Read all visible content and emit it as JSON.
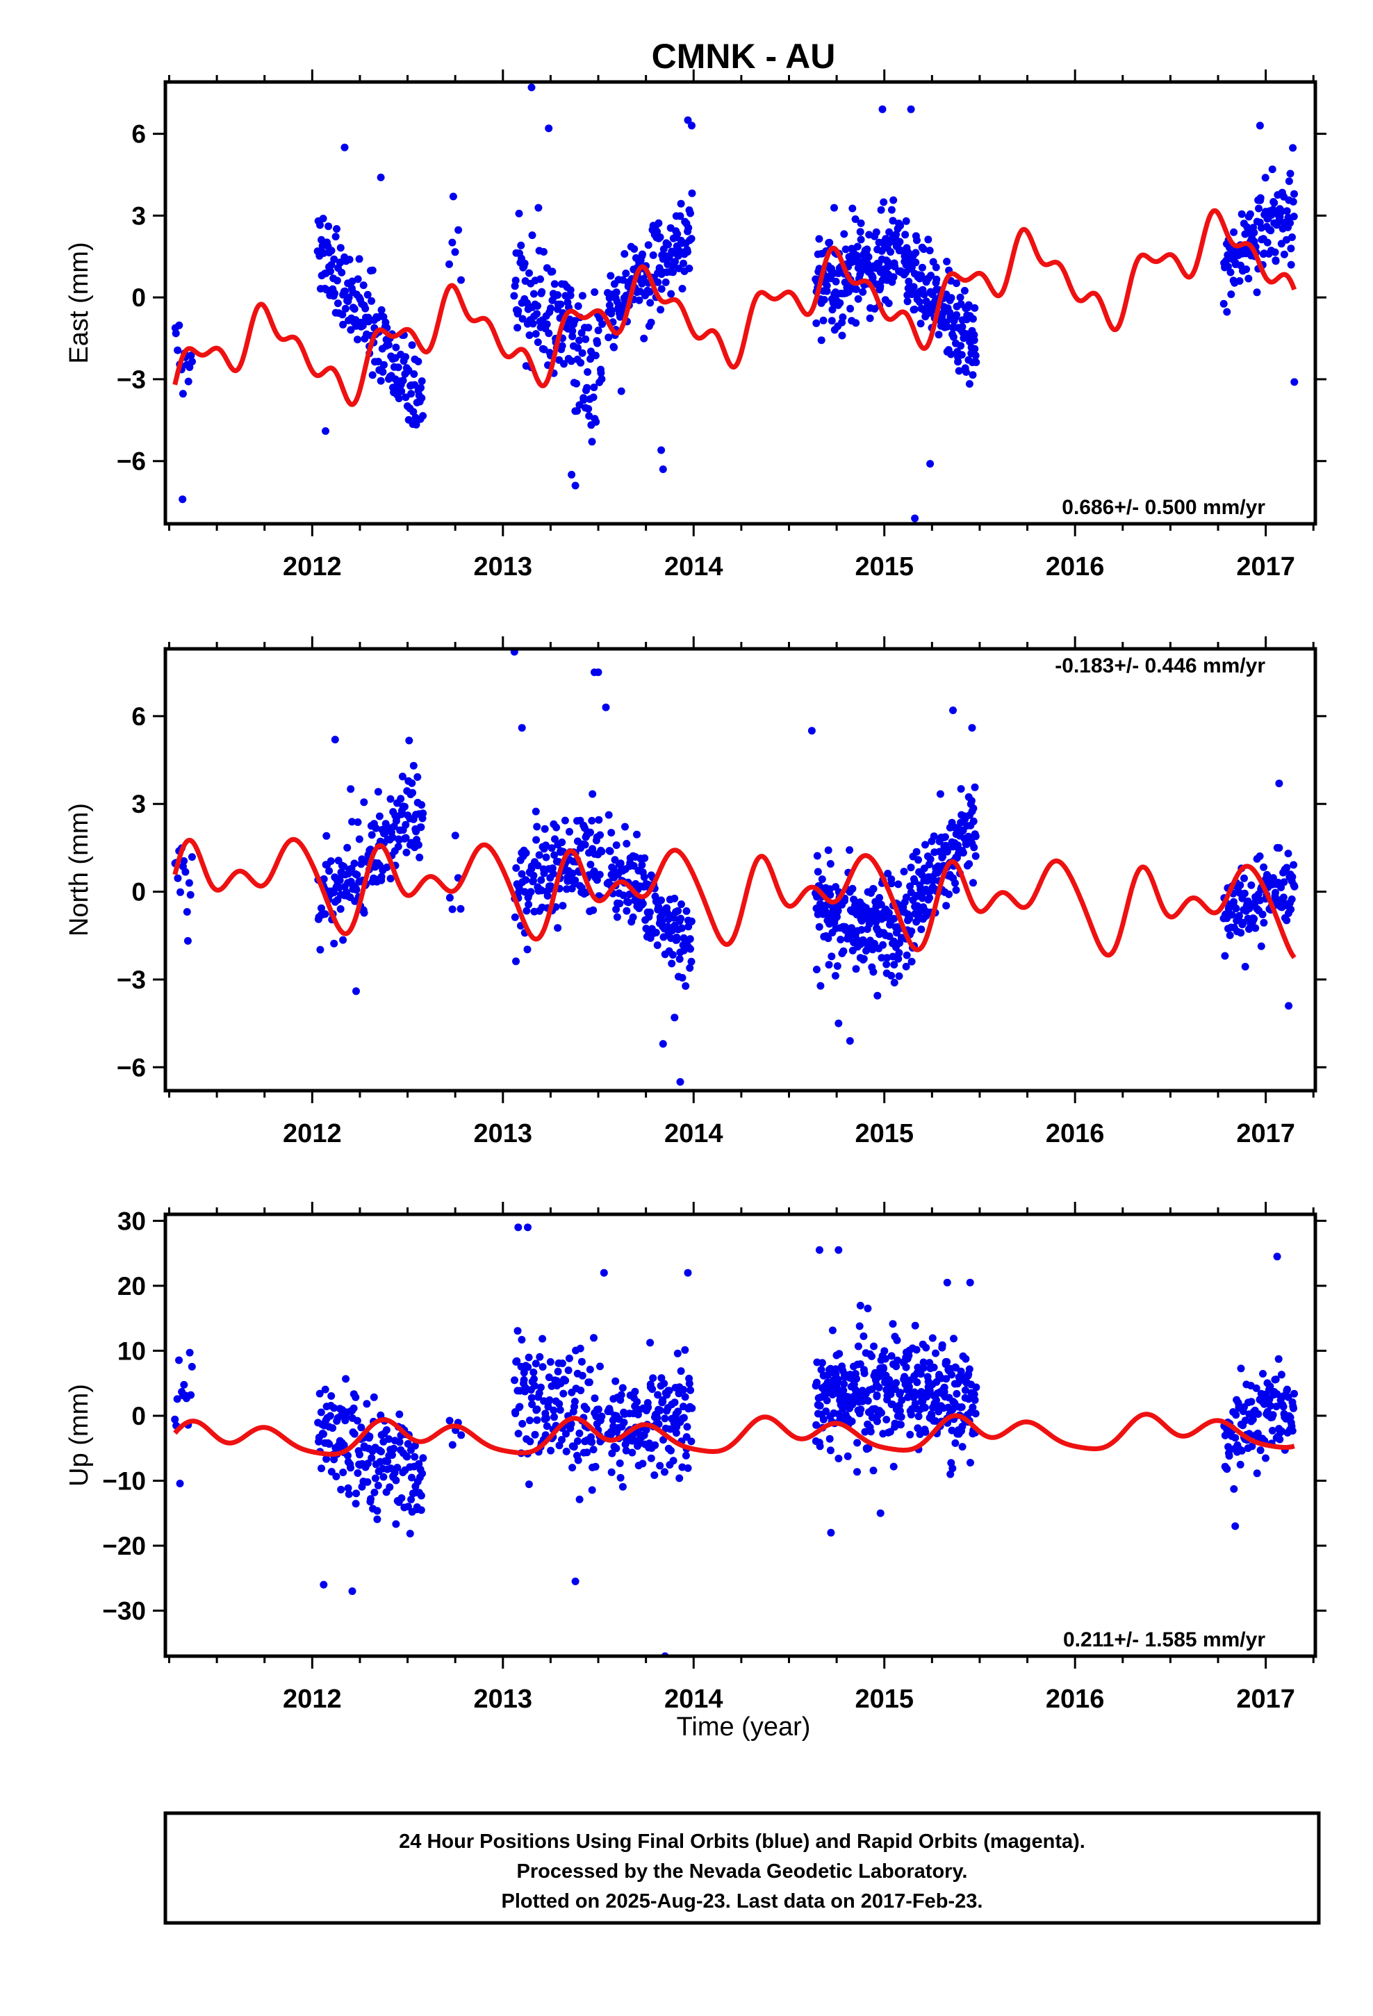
{
  "title": "CMNK - AU",
  "colors": {
    "data": "#0000ee",
    "model": "#ee1111",
    "frame": "#000000"
  },
  "xaxis": {
    "label": "Time (year)",
    "range": [
      2011.23,
      2017.26
    ],
    "major_ticks": [
      2012,
      2013,
      2014,
      2015,
      2016,
      2017
    ],
    "minor_step": 0.25
  },
  "chart_data": [
    {
      "type": "scatter",
      "key": "east",
      "ylabel": "East (mm)",
      "ylim": [
        -8.3,
        7.9
      ],
      "yticks": [
        -6,
        -3,
        0,
        3,
        6
      ],
      "rate": "0.686+/- 0.500 mm/yr",
      "rate_position": "bottom-right",
      "series": [
        {
          "role": "data",
          "segments": [
            {
              "start": 2011.28,
              "end": 2011.37,
              "n": 14,
              "base": -2.2,
              "slope": 0,
              "amp": 1.6,
              "seed": 11
            },
            {
              "start": 2012.03,
              "end": 2012.58,
              "n": 175,
              "base": 1.8,
              "slope": -10.5,
              "amp": 1.5,
              "seed": 12
            },
            {
              "start": 2012.72,
              "end": 2012.78,
              "n": 5,
              "base": 1.5,
              "slope": 0,
              "amp": 1.8,
              "seed": 13
            },
            {
              "start": 2013.06,
              "end": 2013.52,
              "n": 150,
              "base": 0.8,
              "slope": -8.0,
              "amp": 2.1,
              "seed": 14
            },
            {
              "start": 2013.55,
              "end": 2013.99,
              "n": 155,
              "base": -0.6,
              "slope": 6.4,
              "amp": 1.6,
              "seed": 15
            },
            {
              "start": 2014.64,
              "end": 2015.09,
              "n": 205,
              "base": 0.2,
              "slope": 3.3,
              "amp": 1.6,
              "seed": 16
            },
            {
              "start": 2015.1,
              "end": 2015.48,
              "n": 170,
              "base": 1.4,
              "slope": -9.0,
              "amp": 1.4,
              "seed": 17
            },
            {
              "start": 2016.78,
              "end": 2017.15,
              "n": 125,
              "base": 1.0,
              "slope": 6.2,
              "amp": 1.6,
              "seed": 18
            }
          ],
          "outliers": [
            [
              2011.32,
              -7.4
            ],
            [
              2012.07,
              -4.9
            ],
            [
              2012.17,
              5.5
            ],
            [
              2012.36,
              4.4
            ],
            [
              2012.74,
              3.7
            ],
            [
              2013.15,
              7.7
            ],
            [
              2013.24,
              6.2
            ],
            [
              2013.36,
              -6.5
            ],
            [
              2013.38,
              -6.9
            ],
            [
              2013.83,
              -5.6
            ],
            [
              2013.84,
              -6.3
            ],
            [
              2013.97,
              6.5
            ],
            [
              2013.99,
              6.3
            ],
            [
              2014.99,
              6.9
            ],
            [
              2015.14,
              6.9
            ],
            [
              2015.16,
              -8.1
            ],
            [
              2015.24,
              -6.1
            ],
            [
              2016.97,
              6.3
            ],
            [
              2017.15,
              -3.1
            ]
          ]
        },
        {
          "role": "model",
          "offset": -2.48,
          "trend": 0.686,
          "t0": 2011.28,
          "terms": [
            [
              1,
              1.05,
              -1.0
            ],
            [
              2,
              0.55,
              0.6
            ],
            [
              3,
              0.5,
              -0.65
            ],
            [
              5,
              0.45,
              0.35
            ]
          ],
          "range": [
            2011.28,
            2017.15
          ]
        }
      ]
    },
    {
      "type": "scatter",
      "key": "north",
      "ylabel": "North (mm)",
      "ylim": [
        -6.8,
        8.3
      ],
      "yticks": [
        -6,
        -3,
        0,
        3,
        6
      ],
      "rate": "-0.183+/- 0.446 mm/yr",
      "rate_position": "top-right",
      "series": [
        {
          "role": "data",
          "segments": [
            {
              "start": 2011.28,
              "end": 2011.37,
              "n": 14,
              "base": 0.3,
              "slope": 0,
              "amp": 1.4,
              "seed": 21
            },
            {
              "start": 2012.03,
              "end": 2012.58,
              "n": 175,
              "base": -0.8,
              "slope": 7.0,
              "amp": 1.6,
              "seed": 22
            },
            {
              "start": 2012.72,
              "end": 2012.78,
              "n": 5,
              "base": -0.3,
              "slope": 0,
              "amp": 1.3,
              "seed": 23
            },
            {
              "start": 2013.06,
              "end": 2013.52,
              "n": 150,
              "base": 0.0,
              "slope": 3.0,
              "amp": 1.6,
              "seed": 24
            },
            {
              "start": 2013.55,
              "end": 2013.99,
              "n": 155,
              "base": 1.0,
              "slope": -6.5,
              "amp": 1.2,
              "seed": 25
            },
            {
              "start": 2014.64,
              "end": 2015.09,
              "n": 205,
              "base": -0.6,
              "slope": -2.0,
              "amp": 1.6,
              "seed": 26
            },
            {
              "start": 2015.1,
              "end": 2015.48,
              "n": 170,
              "base": -1.0,
              "slope": 9.0,
              "amp": 1.4,
              "seed": 27
            },
            {
              "start": 2016.78,
              "end": 2017.15,
              "n": 125,
              "base": -0.9,
              "slope": 3.2,
              "amp": 1.2,
              "seed": 28
            }
          ],
          "outliers": [
            [
              2012.12,
              5.2
            ],
            [
              2012.23,
              -3.4
            ],
            [
              2013.06,
              8.2
            ],
            [
              2013.1,
              5.6
            ],
            [
              2013.48,
              7.5
            ],
            [
              2013.5,
              7.5
            ],
            [
              2013.54,
              6.3
            ],
            [
              2013.84,
              -5.2
            ],
            [
              2013.9,
              -4.3
            ],
            [
              2013.93,
              -6.5
            ],
            [
              2014.62,
              5.5
            ],
            [
              2014.76,
              -4.5
            ],
            [
              2014.82,
              -5.1
            ],
            [
              2015.36,
              6.2
            ],
            [
              2015.46,
              5.6
            ],
            [
              2017.07,
              3.7
            ],
            [
              2017.12,
              -3.9
            ]
          ]
        },
        {
          "role": "model",
          "offset": 0.58,
          "trend": -0.183,
          "t0": 2011.28,
          "terms": [
            [
              1,
              0.45,
              -1.3
            ],
            [
              2,
              0.95,
              0.1
            ],
            [
              3,
              0.55,
              0.9
            ],
            [
              4,
              0.3,
              -0.3
            ]
          ],
          "range": [
            2011.28,
            2017.15
          ]
        }
      ]
    },
    {
      "type": "scatter",
      "key": "up",
      "ylabel": "Up (mm)",
      "ylim": [
        -37,
        31
      ],
      "yticks": [
        -30,
        -20,
        -10,
        0,
        10,
        20,
        30
      ],
      "rate": "0.211+/- 1.585 mm/yr",
      "rate_position": "bottom-right",
      "series": [
        {
          "role": "data",
          "segments": [
            {
              "start": 2011.28,
              "end": 2011.37,
              "n": 14,
              "base": 2.0,
              "slope": 0,
              "amp": 8.0,
              "seed": 31
            },
            {
              "start": 2012.03,
              "end": 2012.58,
              "n": 175,
              "base": -2.0,
              "slope": -14.0,
              "amp": 7.5,
              "seed": 32
            },
            {
              "start": 2012.72,
              "end": 2012.78,
              "n": 5,
              "base": -3.0,
              "slope": 0,
              "amp": 3.0,
              "seed": 33
            },
            {
              "start": 2013.06,
              "end": 2013.52,
              "n": 150,
              "base": 3.5,
              "slope": -9.0,
              "amp": 9.0,
              "seed": 34
            },
            {
              "start": 2013.55,
              "end": 2013.99,
              "n": 155,
              "base": -2.0,
              "slope": 5.0,
              "amp": 7.0,
              "seed": 35
            },
            {
              "start": 2014.64,
              "end": 2015.09,
              "n": 205,
              "base": 2.5,
              "slope": 1.0,
              "amp": 8.0,
              "seed": 36
            },
            {
              "start": 2015.1,
              "end": 2015.48,
              "n": 170,
              "base": 4.5,
              "slope": -10.0,
              "amp": 7.0,
              "seed": 37
            },
            {
              "start": 2016.78,
              "end": 2017.15,
              "n": 125,
              "base": -4.0,
              "slope": 18.0,
              "amp": 6.5,
              "seed": 38
            }
          ],
          "outliers": [
            [
              2012.06,
              -26.0
            ],
            [
              2012.21,
              -27.0
            ],
            [
              2013.08,
              29.0
            ],
            [
              2013.13,
              29.0
            ],
            [
              2013.38,
              -25.5
            ],
            [
              2013.53,
              22.0
            ],
            [
              2013.85,
              -37.0
            ],
            [
              2013.97,
              22.0
            ],
            [
              2014.66,
              25.5
            ],
            [
              2014.76,
              25.5
            ],
            [
              2014.72,
              -18.0
            ],
            [
              2014.98,
              -15.0
            ],
            [
              2015.33,
              20.5
            ],
            [
              2015.45,
              20.5
            ],
            [
              2017.06,
              24.5
            ],
            [
              2016.84,
              -17.0
            ]
          ]
        },
        {
          "role": "model",
          "offset": -3.65,
          "trend": 0.211,
          "t0": 2011.28,
          "terms": [
            [
              1,
              1.6,
              0.0
            ],
            [
              2,
              1.5,
              1.0
            ],
            [
              3,
              0.7,
              -0.4
            ]
          ],
          "range": [
            2011.28,
            2017.15
          ]
        }
      ]
    }
  ],
  "footer": {
    "line1": "24 Hour Positions Using Final Orbits (blue) and Rapid Orbits (magenta).",
    "line2": "Processed by the Nevada Geodetic Laboratory.",
    "line3": "Plotted on 2025-Aug-23. Last data on 2017-Feb-23."
  }
}
